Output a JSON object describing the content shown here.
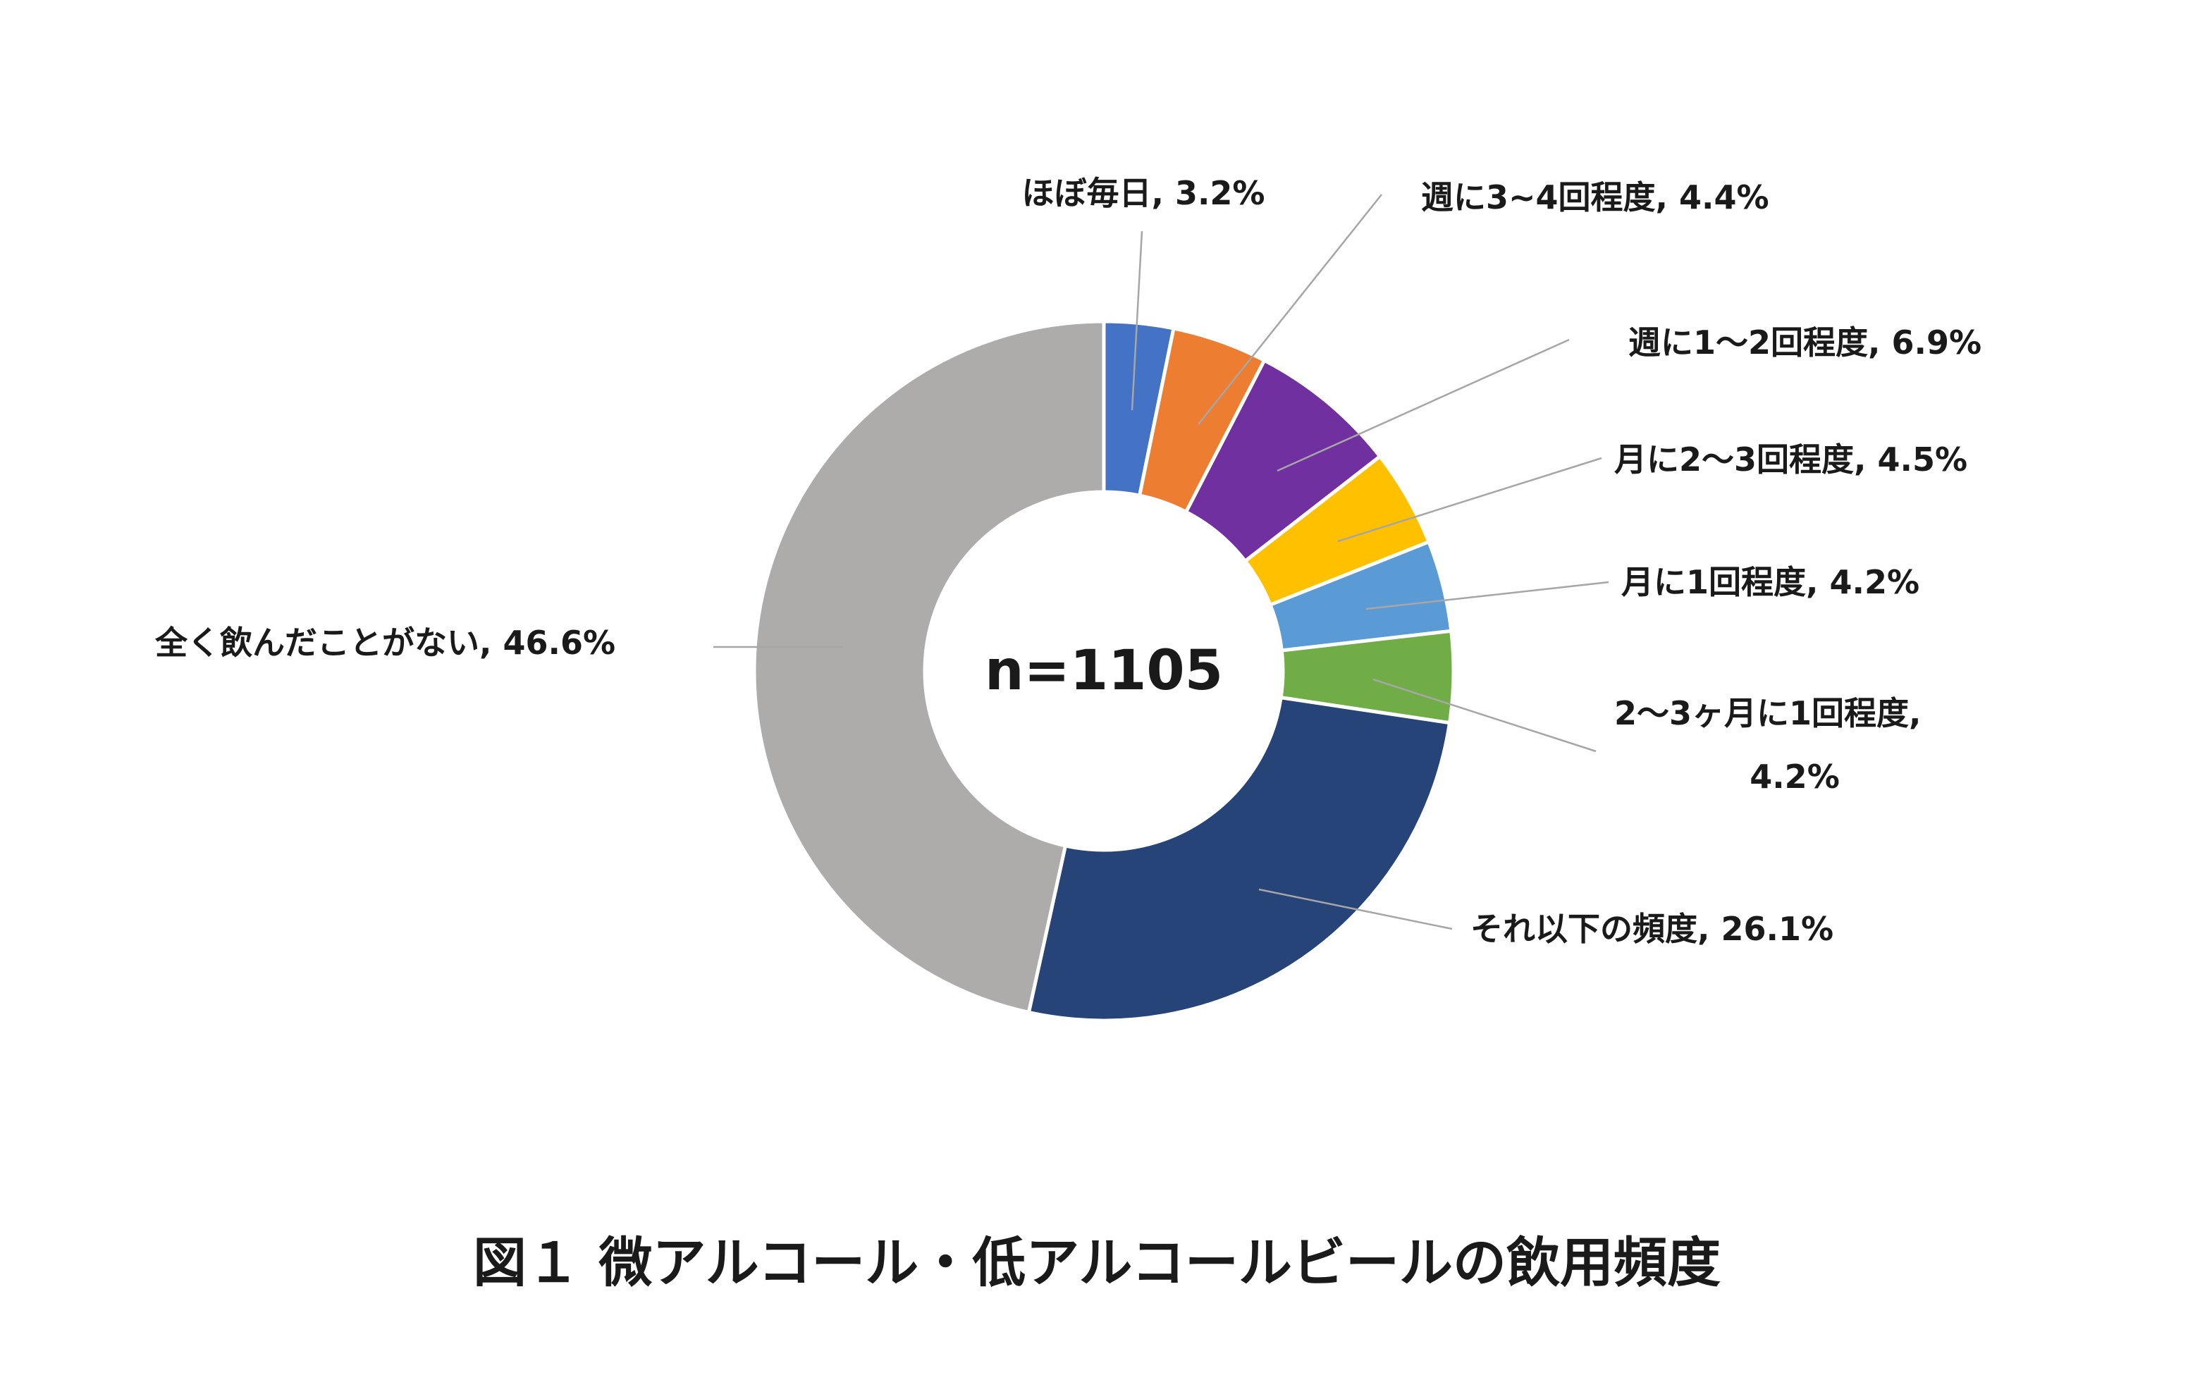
{
  "chart_data": {
    "type": "pie",
    "variant": "donut",
    "center_label": "n=1105",
    "caption": "図１ 微アルコール・低アルコールビールの飲用頻度",
    "slices": [
      {
        "label": "ほぼ毎日",
        "value": 3.2,
        "display": "ほぼ毎日, 3.2%",
        "color": "#4472C4"
      },
      {
        "label": "週に3~4回程度",
        "value": 4.4,
        "display": "週に3~4回程度, 4.4%",
        "color": "#ED7D31"
      },
      {
        "label": "週に1～2回程度",
        "value": 6.9,
        "display": "週に1～2回程度, 6.9%",
        "color": "#7030A0"
      },
      {
        "label": "月に2～3回程度",
        "value": 4.5,
        "display": "月に2～3回程度, 4.5%",
        "color": "#FFC000"
      },
      {
        "label": "月に1回程度",
        "value": 4.2,
        "display": "月に1回程度, 4.2%",
        "color": "#5B9BD5"
      },
      {
        "label": "2～3ヶ月に1回程度",
        "value": 4.2,
        "display_lines": [
          "2～3ヶ月に1回程度,",
          "4.2%"
        ],
        "color": "#70AD47"
      },
      {
        "label": "それ以下の頻度",
        "value": 26.1,
        "display": "それ以下の頻度, 26.1%",
        "color": "#264478"
      },
      {
        "label": "全く飲んだことがない",
        "value": 46.6,
        "display": "全く飲んだことがない, 46.6%",
        "color": "#AEABAB"
      }
    ]
  }
}
